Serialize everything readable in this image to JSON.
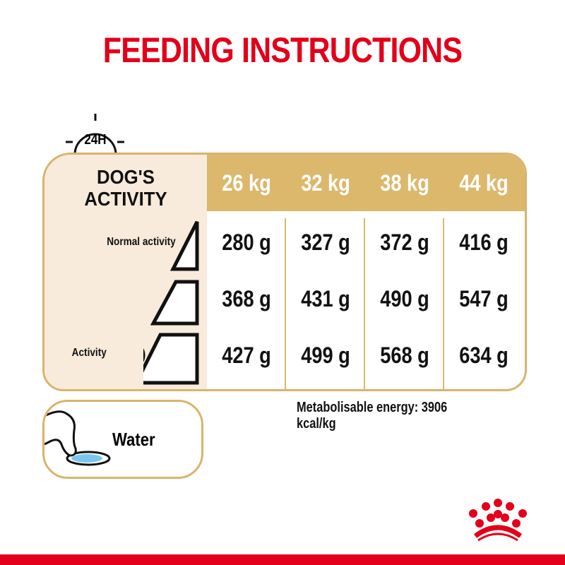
{
  "title": "FEEDING INSTRUCTIONS",
  "clock_label": "24H",
  "activity_header": [
    "DOG'S",
    "ACTIVITY"
  ],
  "activity_labels": {
    "normal": "Normal activity",
    "high": "Activity"
  },
  "weights": [
    "26 kg",
    "32 kg",
    "38 kg",
    "44 kg"
  ],
  "rows": [
    [
      "280 g",
      "327 g",
      "372 g",
      "416 g"
    ],
    [
      "368 g",
      "431 g",
      "490 g",
      "547 g"
    ],
    [
      "427 g",
      "499 g",
      "568 g",
      "634 g"
    ]
  ],
  "water_label": "Water",
  "energy": "Metabolisable energy: 3906 kcal/kg",
  "colors": {
    "brand_red": "#e2001a",
    "gold": "#dcb86c",
    "cream": "#f8ebdc",
    "water_blue": "#7cc6ee"
  }
}
